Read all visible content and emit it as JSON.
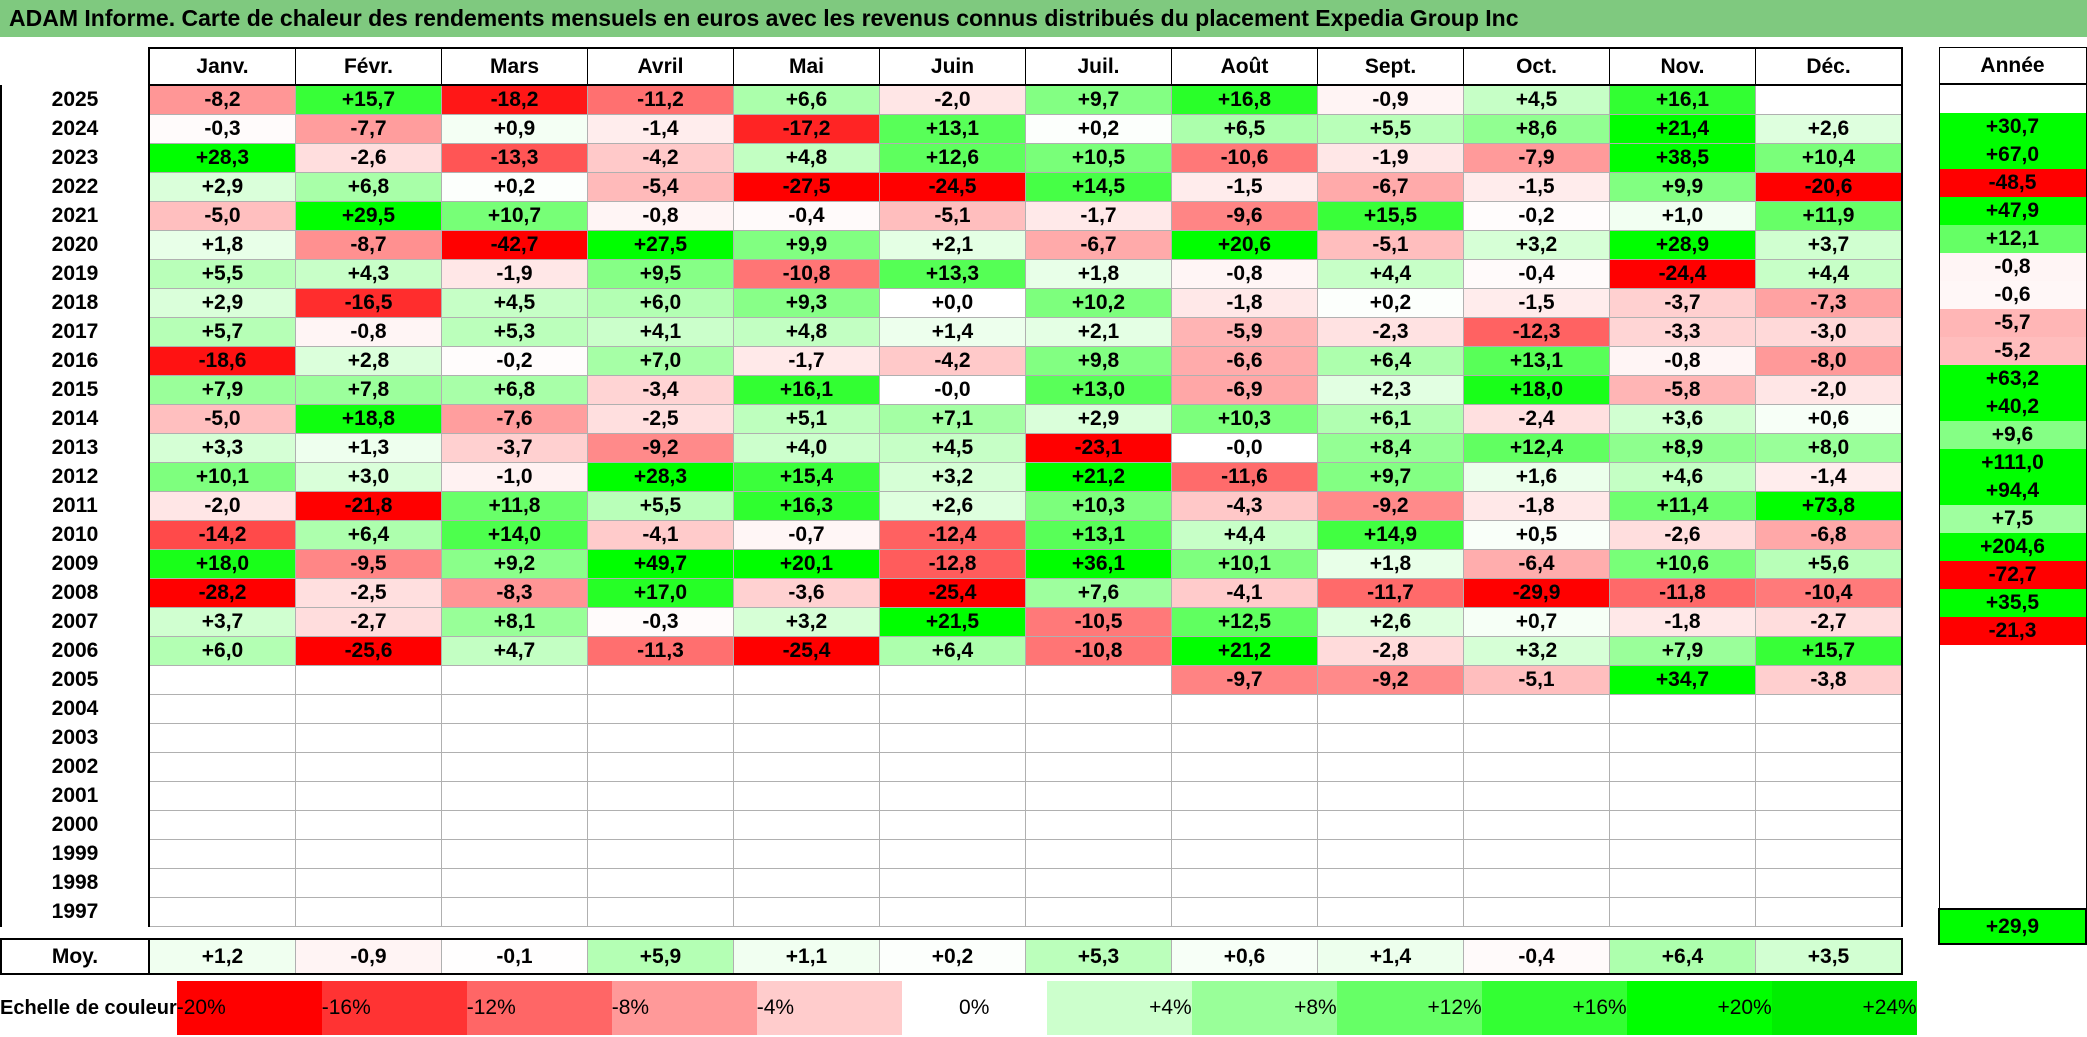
{
  "title": "ADAM Informe. Carte de chaleur des rendements mensuels en euros avec les revenus connus distribués du placement Expedia Group Inc",
  "chart_data": {
    "type": "heatmap",
    "title": "ADAM Informe. Carte de chaleur des rendements mensuels en euros avec les revenus connus distribués du placement Expedia Group Inc",
    "months": [
      "Janv.",
      "Févr.",
      "Mars",
      "Avril",
      "Mai",
      "Juin",
      "Juil.",
      "Août",
      "Sept.",
      "Oct.",
      "Nov.",
      "Déc."
    ],
    "annual_header": "Année",
    "rows": [
      {
        "year": "2025",
        "values": [
          "-8,2",
          "+15,7",
          "-18,2",
          "-11,2",
          "+6,6",
          "-2,0",
          "+9,7",
          "+16,8",
          "-0,9",
          "+4,5",
          "+16,1",
          ""
        ],
        "annual": ""
      },
      {
        "year": "2024",
        "values": [
          "-0,3",
          "-7,7",
          "+0,9",
          "-1,4",
          "-17,2",
          "+13,1",
          "+0,2",
          "+6,5",
          "+5,5",
          "+8,6",
          "+21,4",
          "+2,6"
        ],
        "annual": "+30,7"
      },
      {
        "year": "2023",
        "values": [
          "+28,3",
          "-2,6",
          "-13,3",
          "-4,2",
          "+4,8",
          "+12,6",
          "+10,5",
          "-10,6",
          "-1,9",
          "-7,9",
          "+38,5",
          "+10,4"
        ],
        "annual": "+67,0"
      },
      {
        "year": "2022",
        "values": [
          "+2,9",
          "+6,8",
          "+0,2",
          "-5,4",
          "-27,5",
          "-24,5",
          "+14,5",
          "-1,5",
          "-6,7",
          "-1,5",
          "+9,9",
          "-20,6"
        ],
        "annual": "-48,5"
      },
      {
        "year": "2021",
        "values": [
          "-5,0",
          "+29,5",
          "+10,7",
          "-0,8",
          "-0,4",
          "-5,1",
          "-1,7",
          "-9,6",
          "+15,5",
          "-0,2",
          "+1,0",
          "+11,9"
        ],
        "annual": "+47,9"
      },
      {
        "year": "2020",
        "values": [
          "+1,8",
          "-8,7",
          "-42,7",
          "+27,5",
          "+9,9",
          "+2,1",
          "-6,7",
          "+20,6",
          "-5,1",
          "+3,2",
          "+28,9",
          "+3,7"
        ],
        "annual": "+12,1"
      },
      {
        "year": "2019",
        "values": [
          "+5,5",
          "+4,3",
          "-1,9",
          "+9,5",
          "-10,8",
          "+13,3",
          "+1,8",
          "-0,8",
          "+4,4",
          "-0,4",
          "-24,4",
          "+4,4"
        ],
        "annual": "-0,8"
      },
      {
        "year": "2018",
        "values": [
          "+2,9",
          "-16,5",
          "+4,5",
          "+6,0",
          "+9,3",
          "+0,0",
          "+10,2",
          "-1,8",
          "+0,2",
          "-1,5",
          "-3,7",
          "-7,3"
        ],
        "annual": "-0,6"
      },
      {
        "year": "2017",
        "values": [
          "+5,7",
          "-0,8",
          "+5,3",
          "+4,1",
          "+4,8",
          "+1,4",
          "+2,1",
          "-5,9",
          "-2,3",
          "-12,3",
          "-3,3",
          "-3,0"
        ],
        "annual": "-5,7"
      },
      {
        "year": "2016",
        "values": [
          "-18,6",
          "+2,8",
          "-0,2",
          "+7,0",
          "-1,7",
          "-4,2",
          "+9,8",
          "-6,6",
          "+6,4",
          "+13,1",
          "-0,8",
          "-8,0"
        ],
        "annual": "-5,2"
      },
      {
        "year": "2015",
        "values": [
          "+7,9",
          "+7,8",
          "+6,8",
          "-3,4",
          "+16,1",
          "-0,0",
          "+13,0",
          "-6,9",
          "+2,3",
          "+18,0",
          "-5,8",
          "-2,0"
        ],
        "annual": "+63,2"
      },
      {
        "year": "2014",
        "values": [
          "-5,0",
          "+18,8",
          "-7,6",
          "-2,5",
          "+5,1",
          "+7,1",
          "+2,9",
          "+10,3",
          "+6,1",
          "-2,4",
          "+3,6",
          "+0,6"
        ],
        "annual": "+40,2"
      },
      {
        "year": "2013",
        "values": [
          "+3,3",
          "+1,3",
          "-3,7",
          "-9,2",
          "+4,0",
          "+4,5",
          "-23,1",
          "-0,0",
          "+8,4",
          "+12,4",
          "+8,9",
          "+8,0"
        ],
        "annual": "+9,6"
      },
      {
        "year": "2012",
        "values": [
          "+10,1",
          "+3,0",
          "-1,0",
          "+28,3",
          "+15,4",
          "+3,2",
          "+21,2",
          "-11,6",
          "+9,7",
          "+1,6",
          "+4,6",
          "-1,4"
        ],
        "annual": "+111,0"
      },
      {
        "year": "2011",
        "values": [
          "-2,0",
          "-21,8",
          "+11,8",
          "+5,5",
          "+16,3",
          "+2,6",
          "+10,3",
          "-4,3",
          "-9,2",
          "-1,8",
          "+11,4",
          "+73,8"
        ],
        "annual": "+94,4"
      },
      {
        "year": "2010",
        "values": [
          "-14,2",
          "+6,4",
          "+14,0",
          "-4,1",
          "-0,7",
          "-12,4",
          "+13,1",
          "+4,4",
          "+14,9",
          "+0,5",
          "-2,6",
          "-6,8"
        ],
        "annual": "+7,5"
      },
      {
        "year": "2009",
        "values": [
          "+18,0",
          "-9,5",
          "+9,2",
          "+49,7",
          "+20,1",
          "-12,8",
          "+36,1",
          "+10,1",
          "+1,8",
          "-6,4",
          "+10,6",
          "+5,6"
        ],
        "annual": "+204,6"
      },
      {
        "year": "2008",
        "values": [
          "-28,2",
          "-2,5",
          "-8,3",
          "+17,0",
          "-3,6",
          "-25,4",
          "+7,6",
          "-4,1",
          "-11,7",
          "-29,9",
          "-11,8",
          "-10,4"
        ],
        "annual": "-72,7"
      },
      {
        "year": "2007",
        "values": [
          "+3,7",
          "-2,7",
          "+8,1",
          "-0,3",
          "+3,2",
          "+21,5",
          "-10,5",
          "+12,5",
          "+2,6",
          "+0,7",
          "-1,8",
          "-2,7"
        ],
        "annual": "+35,5"
      },
      {
        "year": "2006",
        "values": [
          "+6,0",
          "-25,6",
          "+4,7",
          "-11,3",
          "-25,4",
          "+6,4",
          "-10,8",
          "+21,2",
          "-2,8",
          "+3,2",
          "+7,9",
          "+15,7"
        ],
        "annual": "-21,3"
      },
      {
        "year": "2005",
        "values": [
          "",
          "",
          "",
          "",
          "",
          "",
          "",
          "-9,7",
          "-9,2",
          "-5,1",
          "+34,7",
          "-3,8"
        ],
        "annual": ""
      },
      {
        "year": "2004",
        "values": [
          "",
          "",
          "",
          "",
          "",
          "",
          "",
          "",
          "",
          "",
          "",
          ""
        ],
        "annual": ""
      },
      {
        "year": "2003",
        "values": [
          "",
          "",
          "",
          "",
          "",
          "",
          "",
          "",
          "",
          "",
          "",
          ""
        ],
        "annual": ""
      },
      {
        "year": "2002",
        "values": [
          "",
          "",
          "",
          "",
          "",
          "",
          "",
          "",
          "",
          "",
          "",
          ""
        ],
        "annual": ""
      },
      {
        "year": "2001",
        "values": [
          "",
          "",
          "",
          "",
          "",
          "",
          "",
          "",
          "",
          "",
          "",
          ""
        ],
        "annual": ""
      },
      {
        "year": "2000",
        "values": [
          "",
          "",
          "",
          "",
          "",
          "",
          "",
          "",
          "",
          "",
          "",
          ""
        ],
        "annual": ""
      },
      {
        "year": "1999",
        "values": [
          "",
          "",
          "",
          "",
          "",
          "",
          "",
          "",
          "",
          "",
          "",
          ""
        ],
        "annual": ""
      },
      {
        "year": "1998",
        "values": [
          "",
          "",
          "",
          "",
          "",
          "",
          "",
          "",
          "",
          "",
          "",
          ""
        ],
        "annual": ""
      },
      {
        "year": "1997",
        "values": [
          "",
          "",
          "",
          "",
          "",
          "",
          "",
          "",
          "",
          "",
          "",
          ""
        ],
        "annual": ""
      }
    ],
    "average": {
      "label": "Moy.",
      "values": [
        "+1,2",
        "-0,9",
        "-0,1",
        "+5,9",
        "+1,1",
        "+0,2",
        "+5,3",
        "+0,6",
        "+1,4",
        "-0,4",
        "+6,4",
        "+3,5"
      ],
      "annual": "+29,9"
    },
    "scale": {
      "label": "Echelle de couleur",
      "steps": [
        {
          "text": "-20%",
          "value": -20,
          "color": "#ff0000"
        },
        {
          "text": "-16%",
          "value": -16,
          "color": "#ff3333"
        },
        {
          "text": "-12%",
          "value": -12,
          "color": "#ff6666"
        },
        {
          "text": "-8%",
          "value": -8,
          "color": "#ff9999"
        },
        {
          "text": "-4%",
          "value": -4,
          "color": "#ffcccc"
        },
        {
          "text": "0%",
          "value": 0,
          "color": "#ffffff"
        },
        {
          "text": "+4%",
          "value": 4,
          "color": "#ccffcc"
        },
        {
          "text": "+8%",
          "value": 8,
          "color": "#99ff99"
        },
        {
          "text": "+12%",
          "value": 12,
          "color": "#66ff66"
        },
        {
          "text": "+16%",
          "value": 16,
          "color": "#33ff33"
        },
        {
          "text": "+20%",
          "value": 20,
          "color": "#00ff00"
        },
        {
          "text": "+24%",
          "value": 24,
          "color": "#00ee00"
        }
      ]
    }
  }
}
